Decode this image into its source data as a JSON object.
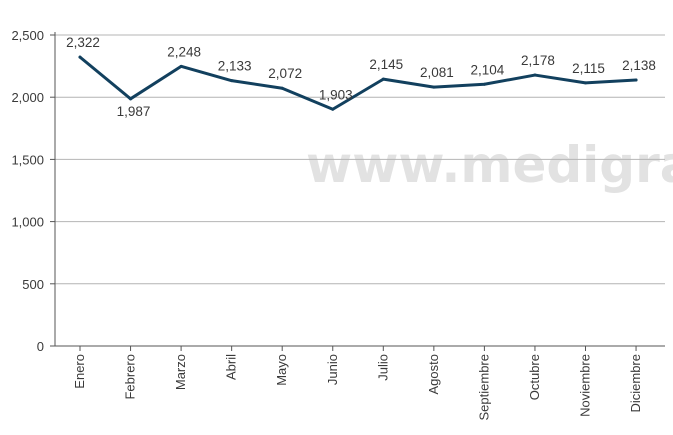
{
  "chart_data": {
    "type": "line",
    "categories": [
      "Enero",
      "Febrero",
      "Marzo",
      "Abril",
      "Mayo",
      "Junio",
      "Julio",
      "Agosto",
      "Septiembre",
      "Octubre",
      "Noviembre",
      "Diciembre"
    ],
    "series": [
      {
        "values": [
          2322,
          1987,
          2248,
          2133,
          2072,
          1903,
          2145,
          2081,
          2104,
          2178,
          2115,
          2138
        ],
        "labels": [
          "2,322",
          "1,987",
          "2,248",
          "2,133",
          "2,072",
          "1,903",
          "2,145",
          "2,081",
          "2,104",
          "2,178",
          "2,115",
          "2,138"
        ]
      }
    ],
    "yticks": [
      0,
      500,
      1000,
      1500,
      2000,
      2500
    ],
    "ytick_labels": [
      "0",
      "500",
      "1,000",
      "1,500",
      "2,000",
      "2,500"
    ],
    "ylim": [
      0,
      2500
    ],
    "grid": true,
    "legend": "none",
    "colors": {
      "line": "#12405e",
      "grid": "#b4b4b4",
      "axis": "#555555",
      "text": "#3a3a3a",
      "watermark": "#d9d9d9"
    }
  },
  "watermark": "www.medigraphic."
}
